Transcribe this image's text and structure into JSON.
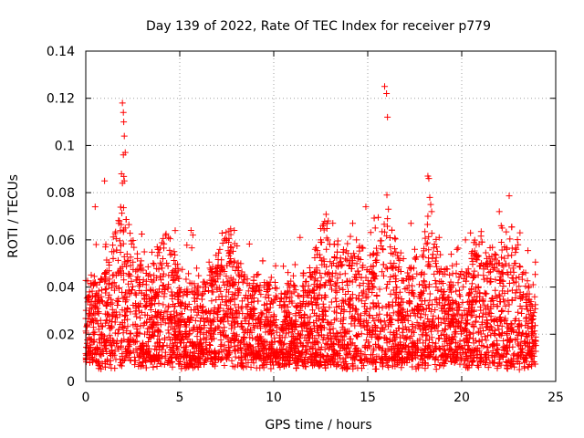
{
  "chart_data": {
    "type": "scatter",
    "title": "Day 139 of 2022, Rate Of TEC Index for receiver p779",
    "xlabel": "GPS time / hours",
    "ylabel": "ROTI / TECUs",
    "xlim": [
      0,
      25
    ],
    "ylim": [
      0,
      0.14
    ],
    "x_ticks": [
      0,
      5,
      10,
      15,
      20,
      25
    ],
    "x_tick_labels": [
      "0",
      "5",
      "10",
      "15",
      "20",
      "25"
    ],
    "y_ticks": [
      0,
      0.02,
      0.04,
      0.06,
      0.08,
      0.1,
      0.12,
      0.14
    ],
    "y_tick_labels": [
      "0",
      "0.02",
      "0.04",
      "0.06",
      "0.08",
      "0.1",
      "0.12",
      "0.14"
    ],
    "grid": true,
    "marker": "+",
    "color": "#ff0000",
    "data_span_hours": [
      0,
      23.95
    ],
    "series": [
      {
        "name": "ROTI",
        "x": [
          0.3,
          0.5,
          0.55,
          1.0,
          1.05,
          1.9,
          1.95,
          2.0,
          2.02,
          2.05,
          2.1,
          2.0,
          2.05,
          1.95,
          2.1,
          2.2,
          2.9,
          3.8,
          4.1,
          4.4,
          4.7,
          5.6,
          5.7,
          5.9,
          6.6,
          7.2,
          7.5,
          7.6,
          7.7,
          7.9,
          8.1,
          9.2,
          10.1,
          11.4,
          12.2,
          12.5,
          12.8,
          12.9,
          13.4,
          14.2,
          14.4,
          14.9,
          15.4,
          15.9,
          16.0,
          16.05,
          16.02,
          16.1,
          16.05,
          16.2,
          16.9,
          17.3,
          17.5,
          18.2,
          18.25,
          18.3,
          18.35,
          18.4,
          18.2,
          18.8,
          19.5,
          20.2,
          20.7,
          21.0,
          21.6,
          22.0,
          22.1,
          22.15,
          22.9,
          23.1,
          23.4,
          23.8
        ],
        "y": [
          0.034,
          0.074,
          0.058,
          0.085,
          0.057,
          0.088,
          0.118,
          0.114,
          0.11,
          0.104,
          0.097,
          0.096,
          0.085,
          0.084,
          0.065,
          0.054,
          0.049,
          0.057,
          0.052,
          0.061,
          0.055,
          0.064,
          0.062,
          0.048,
          0.045,
          0.049,
          0.06,
          0.059,
          0.057,
          0.064,
          0.047,
          0.039,
          0.049,
          0.061,
          0.056,
          0.06,
          0.056,
          0.068,
          0.058,
          0.067,
          0.06,
          0.074,
          0.065,
          0.125,
          0.122,
          0.112,
          0.079,
          0.073,
          0.069,
          0.057,
          0.052,
          0.067,
          0.056,
          0.087,
          0.086,
          0.078,
          0.075,
          0.072,
          0.07,
          0.061,
          0.049,
          0.06,
          0.054,
          0.049,
          0.053,
          0.072,
          0.066,
          0.065,
          0.056,
          0.063,
          0.046,
          0.041
        ]
      }
    ]
  }
}
